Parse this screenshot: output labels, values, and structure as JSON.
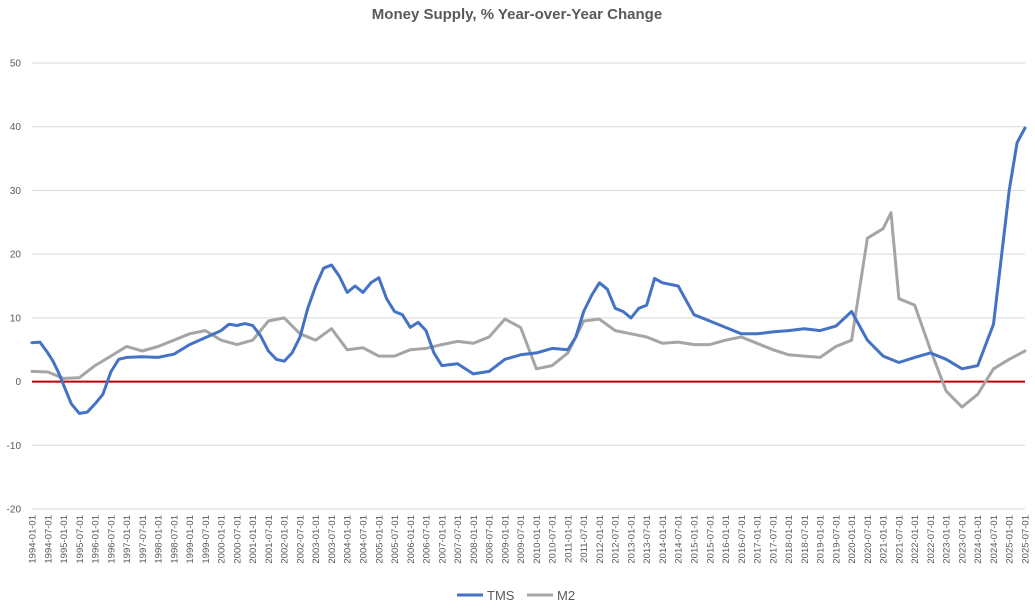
{
  "chart_data": {
    "type": "line",
    "title": "Money Supply, % Year-over-Year Change",
    "xlabel": "",
    "ylabel": "",
    "ylim": [
      -20,
      50
    ],
    "yticks": [
      -20,
      -10,
      0,
      10,
      20,
      30,
      40,
      50
    ],
    "x_ticks": [
      "1994-01-01",
      "1994-07-01",
      "1995-01-01",
      "1995-07-01",
      "1996-01-01",
      "1996-07-01",
      "1997-01-01",
      "1997-07-01",
      "1998-01-01",
      "1998-07-01",
      "1999-01-01",
      "1999-07-01",
      "2000-01-01",
      "2000-07-01",
      "2001-01-01",
      "2001-07-01",
      "2002-01-01",
      "2002-07-01",
      "2003-01-01",
      "2003-07-01",
      "2004-01-01",
      "2004-07-01",
      "2005-01-01",
      "2005-07-01",
      "2006-01-01",
      "2006-07-01",
      "2007-01-01",
      "2007-07-01",
      "2008-01-01",
      "2008-07-01",
      "2009-01-01",
      "2009-07-01",
      "2010-01-01",
      "2010-07-01",
      "2011-01-01",
      "2011-07-01",
      "2012-01-01",
      "2012-07-01",
      "2013-01-01",
      "2013-07-01",
      "2014-01-01",
      "2014-07-01",
      "2015-01-01",
      "2015-07-01",
      "2016-01-01",
      "2016-07-01",
      "2017-01-01",
      "2017-07-01",
      "2018-01-01",
      "2018-07-01",
      "2019-01-01",
      "2019-07-01",
      "2020-01-01",
      "2020-07-01",
      "2021-01-01",
      "2021-07-01",
      "2022-01-01",
      "2022-07-01",
      "2023-01-01",
      "2023-07-01",
      "2024-01-01",
      "2024-07-01",
      "2025-01-01",
      "2025-07-01"
    ],
    "reference_line": {
      "y": 0,
      "color": "#c00000"
    },
    "grid": true,
    "legend_position": "bottom",
    "series": [
      {
        "name": "TMS",
        "color": "#4472c4",
        "points": [
          [
            "1994-01-01",
            6.1
          ],
          [
            "1994-04-01",
            6.2
          ],
          [
            "1994-07-01",
            4.5
          ],
          [
            "1994-09-01",
            3.2
          ],
          [
            "1994-11-01",
            1.5
          ],
          [
            "1995-01-01",
            -0.5
          ],
          [
            "1995-04-01",
            -3.5
          ],
          [
            "1995-07-01",
            -5.0
          ],
          [
            "1995-10-01",
            -4.8
          ],
          [
            "1996-01-01",
            -3.5
          ],
          [
            "1996-04-01",
            -2.0
          ],
          [
            "1996-07-01",
            1.5
          ],
          [
            "1996-10-01",
            3.5
          ],
          [
            "1997-01-01",
            3.8
          ],
          [
            "1997-07-01",
            3.9
          ],
          [
            "1998-01-01",
            3.8
          ],
          [
            "1998-07-01",
            4.3
          ],
          [
            "1999-01-01",
            5.8
          ],
          [
            "1999-07-01",
            6.9
          ],
          [
            "2000-01-01",
            8.0
          ],
          [
            "2000-04-01",
            9.0
          ],
          [
            "2000-07-01",
            8.8
          ],
          [
            "2000-10-01",
            9.1
          ],
          [
            "2001-01-01",
            8.8
          ],
          [
            "2001-04-01",
            7.2
          ],
          [
            "2001-07-01",
            4.8
          ],
          [
            "2001-10-01",
            3.5
          ],
          [
            "2002-01-01",
            3.2
          ],
          [
            "2002-04-01",
            4.5
          ],
          [
            "2002-07-01",
            7.0
          ],
          [
            "2002-10-01",
            11.5
          ],
          [
            "2003-01-01",
            15.0
          ],
          [
            "2003-04-01",
            17.8
          ],
          [
            "2003-07-01",
            18.3
          ],
          [
            "2003-10-01",
            16.5
          ],
          [
            "2004-01-01",
            14.0
          ],
          [
            "2004-04-01",
            15.0
          ],
          [
            "2004-07-01",
            14.0
          ],
          [
            "2004-10-01",
            15.5
          ],
          [
            "2005-01-01",
            16.3
          ],
          [
            "2005-04-01",
            13.0
          ],
          [
            "2005-07-01",
            11.0
          ],
          [
            "2005-10-01",
            10.5
          ],
          [
            "2006-01-01",
            8.5
          ],
          [
            "2006-04-01",
            9.3
          ],
          [
            "2006-07-01",
            8.0
          ],
          [
            "2006-10-01",
            4.5
          ],
          [
            "2007-01-01",
            2.5
          ],
          [
            "2007-07-01",
            2.8
          ],
          [
            "2008-01-01",
            1.2
          ],
          [
            "2008-07-01",
            1.6
          ],
          [
            "2009-01-01",
            3.5
          ],
          [
            "2009-07-01",
            4.2
          ],
          [
            "2010-01-01",
            4.5
          ],
          [
            "2010-07-01",
            5.2
          ],
          [
            "2011-01-01",
            5.0
          ],
          [
            "2011-04-01",
            7.0
          ],
          [
            "2011-07-01",
            11.0
          ],
          [
            "2011-10-01",
            13.5
          ],
          [
            "2012-01-01",
            15.5
          ],
          [
            "2012-04-01",
            14.5
          ],
          [
            "2012-07-01",
            11.5
          ],
          [
            "2012-10-01",
            11.0
          ],
          [
            "2013-01-01",
            10.0
          ],
          [
            "2013-04-01",
            11.5
          ],
          [
            "2013-07-01",
            12.0
          ],
          [
            "2013-10-01",
            16.2
          ],
          [
            "2014-01-01",
            15.5
          ],
          [
            "2014-07-01",
            15.0
          ],
          [
            "2015-01-01",
            10.5
          ],
          [
            "2015-07-01",
            9.5
          ],
          [
            "2016-01-01",
            8.5
          ],
          [
            "2016-07-01",
            7.5
          ],
          [
            "2017-01-01",
            7.5
          ],
          [
            "2017-07-01",
            7.8
          ],
          [
            "2018-01-01",
            8.0
          ],
          [
            "2018-07-01",
            8.3
          ],
          [
            "2019-01-01",
            8.0
          ],
          [
            "2019-07-01",
            8.7
          ],
          [
            "2020-01-01",
            11.0
          ],
          [
            "2020-07-01",
            6.5
          ],
          [
            "2021-01-01",
            4.0
          ],
          [
            "2021-07-01",
            3.0
          ],
          [
            "2022-01-01",
            3.8
          ],
          [
            "2022-07-01",
            4.5
          ],
          [
            "2023-01-01",
            3.5
          ],
          [
            "2023-07-01",
            2.0
          ],
          [
            "2024-01-01",
            2.5
          ],
          [
            "2024-07-01",
            9.0
          ],
          [
            "2025-01-01",
            30.0
          ],
          [
            "2025-04-01",
            37.5
          ],
          [
            "2025-07-01",
            39.8
          ]
        ]
      },
      {
        "name": "M2",
        "color": "#a5a5a5",
        "points": [
          [
            "1994-01-01",
            1.6
          ],
          [
            "1994-07-01",
            1.5
          ],
          [
            "1995-01-01",
            0.5
          ],
          [
            "1995-07-01",
            0.6
          ],
          [
            "1996-01-01",
            2.5
          ],
          [
            "1996-07-01",
            4.0
          ],
          [
            "1997-01-01",
            5.5
          ],
          [
            "1997-07-01",
            4.8
          ],
          [
            "1998-01-01",
            5.5
          ],
          [
            "1998-07-01",
            6.5
          ],
          [
            "1999-01-01",
            7.5
          ],
          [
            "1999-07-01",
            8.0
          ],
          [
            "2000-01-01",
            6.5
          ],
          [
            "2000-07-01",
            5.8
          ],
          [
            "2001-01-01",
            6.5
          ],
          [
            "2001-07-01",
            9.5
          ],
          [
            "2002-01-01",
            10.0
          ],
          [
            "2002-07-01",
            7.5
          ],
          [
            "2003-01-01",
            6.5
          ],
          [
            "2003-07-01",
            8.3
          ],
          [
            "2004-01-01",
            5.0
          ],
          [
            "2004-07-01",
            5.3
          ],
          [
            "2005-01-01",
            4.0
          ],
          [
            "2005-07-01",
            4.0
          ],
          [
            "2006-01-01",
            5.0
          ],
          [
            "2006-07-01",
            5.2
          ],
          [
            "2007-01-01",
            5.8
          ],
          [
            "2007-07-01",
            6.3
          ],
          [
            "2008-01-01",
            6.0
          ],
          [
            "2008-07-01",
            7.0
          ],
          [
            "2009-01-01",
            9.8
          ],
          [
            "2009-07-01",
            8.5
          ],
          [
            "2010-01-01",
            2.0
          ],
          [
            "2010-07-01",
            2.5
          ],
          [
            "2011-01-01",
            4.5
          ],
          [
            "2011-07-01",
            9.5
          ],
          [
            "2012-01-01",
            9.8
          ],
          [
            "2012-07-01",
            8.0
          ],
          [
            "2013-01-01",
            7.5
          ],
          [
            "2013-07-01",
            7.0
          ],
          [
            "2014-01-01",
            6.0
          ],
          [
            "2014-07-01",
            6.2
          ],
          [
            "2015-01-01",
            5.8
          ],
          [
            "2015-07-01",
            5.8
          ],
          [
            "2016-01-01",
            6.5
          ],
          [
            "2016-07-01",
            7.0
          ],
          [
            "2017-01-01",
            6.0
          ],
          [
            "2017-07-01",
            5.0
          ],
          [
            "2018-01-01",
            4.2
          ],
          [
            "2018-07-01",
            4.0
          ],
          [
            "2019-01-01",
            3.8
          ],
          [
            "2019-07-01",
            5.5
          ],
          [
            "2020-01-01",
            6.5
          ],
          [
            "2020-07-01",
            22.5
          ],
          [
            "2021-01-01",
            24.0
          ],
          [
            "2021-04-01",
            26.5
          ],
          [
            "2021-07-01",
            13.0
          ],
          [
            "2022-01-01",
            12.0
          ],
          [
            "2022-07-01",
            5.0
          ],
          [
            "2023-01-01",
            -1.5
          ],
          [
            "2023-07-01",
            -4.0
          ],
          [
            "2024-01-01",
            -2.0
          ],
          [
            "2024-07-01",
            2.0
          ],
          [
            "2025-01-01",
            3.5
          ],
          [
            "2025-07-01",
            4.8
          ]
        ]
      }
    ]
  }
}
